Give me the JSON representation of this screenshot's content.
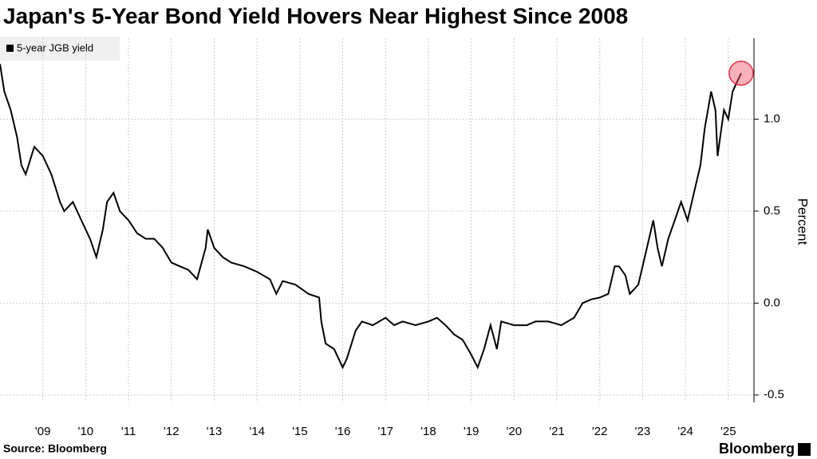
{
  "chart_data": {
    "type": "line",
    "title": "Japan's 5-Year Bond Yield Hovers Near Highest Since 2008",
    "y_label": "Percent",
    "source": "Source: Bloomberg",
    "brand": "Bloomberg",
    "x": [
      2008.5,
      2008.6,
      2008.75,
      2008.9,
      2009.0,
      2009.1,
      2009.3,
      2009.5,
      2009.7,
      2009.9,
      2010.0,
      2010.2,
      2010.4,
      2010.6,
      2010.75,
      2010.9,
      2011.0,
      2011.15,
      2011.3,
      2011.5,
      2011.7,
      2011.9,
      2012.1,
      2012.3,
      2012.5,
      2012.7,
      2012.9,
      2013.1,
      2013.3,
      2013.35,
      2013.5,
      2013.7,
      2013.9,
      2014.2,
      2014.5,
      2014.8,
      2014.95,
      2015.1,
      2015.4,
      2015.7,
      2015.95,
      2016.0,
      2016.1,
      2016.3,
      2016.5,
      2016.6,
      2016.8,
      2016.95,
      2017.2,
      2017.5,
      2017.7,
      2017.9,
      2018.2,
      2018.5,
      2018.7,
      2018.9,
      2019.1,
      2019.3,
      2019.5,
      2019.65,
      2019.8,
      2019.95,
      2020.1,
      2020.2,
      2020.5,
      2020.8,
      2021.0,
      2021.3,
      2021.6,
      2021.9,
      2022.1,
      2022.3,
      2022.5,
      2022.7,
      2022.85,
      2022.95,
      2023.1,
      2023.2,
      2023.4,
      2023.6,
      2023.75,
      2023.85,
      2023.95,
      2024.1,
      2024.25,
      2024.4,
      2024.55,
      2024.7,
      2024.85,
      2024.95,
      2025.1,
      2025.2,
      2025.25,
      2025.4,
      2025.5,
      2025.6,
      2025.7,
      2025.8
    ],
    "series": [
      {
        "name": "5-year JGB yield",
        "color": "#000000",
        "values": [
          1.3,
          1.15,
          1.05,
          0.9,
          0.75,
          0.7,
          0.85,
          0.8,
          0.7,
          0.55,
          0.5,
          0.55,
          0.45,
          0.35,
          0.25,
          0.4,
          0.55,
          0.6,
          0.5,
          0.45,
          0.38,
          0.35,
          0.35,
          0.3,
          0.22,
          0.2,
          0.18,
          0.13,
          0.3,
          0.4,
          0.3,
          0.25,
          0.22,
          0.2,
          0.17,
          0.13,
          0.05,
          0.12,
          0.1,
          0.05,
          0.03,
          -0.1,
          -0.22,
          -0.25,
          -0.35,
          -0.3,
          -0.15,
          -0.1,
          -0.12,
          -0.08,
          -0.12,
          -0.1,
          -0.12,
          -0.1,
          -0.08,
          -0.12,
          -0.17,
          -0.2,
          -0.28,
          -0.35,
          -0.25,
          -0.12,
          -0.25,
          -0.1,
          -0.12,
          -0.12,
          -0.1,
          -0.1,
          -0.12,
          -0.08,
          0.0,
          0.02,
          0.03,
          0.05,
          0.2,
          0.2,
          0.15,
          0.05,
          0.1,
          0.3,
          0.45,
          0.3,
          0.2,
          0.35,
          0.45,
          0.55,
          0.45,
          0.6,
          0.75,
          0.95,
          1.15,
          1.05,
          0.8,
          1.05,
          1.0,
          1.15,
          1.2,
          1.25
        ]
      }
    ],
    "xlim": [
      2008.5,
      2026.1
    ],
    "xticks": [
      {
        "value": 2009.5,
        "label": "'09"
      },
      {
        "value": 2010.5,
        "label": "'10"
      },
      {
        "value": 2011.5,
        "label": "'11"
      },
      {
        "value": 2012.5,
        "label": "'12"
      },
      {
        "value": 2013.5,
        "label": "'13"
      },
      {
        "value": 2014.5,
        "label": "'14"
      },
      {
        "value": 2015.5,
        "label": "'15"
      },
      {
        "value": 2016.5,
        "label": "'16"
      },
      {
        "value": 2017.5,
        "label": "'17"
      },
      {
        "value": 2018.5,
        "label": "'18"
      },
      {
        "value": 2019.5,
        "label": "'19"
      },
      {
        "value": 2020.5,
        "label": "'20"
      },
      {
        "value": 2021.5,
        "label": "'21"
      },
      {
        "value": 2022.5,
        "label": "'22"
      },
      {
        "value": 2023.5,
        "label": "'23"
      },
      {
        "value": 2024.5,
        "label": "'24"
      },
      {
        "value": 2025.5,
        "label": "'25"
      }
    ],
    "ylim": [
      -0.54,
      1.44
    ],
    "yticks": [
      -0.5,
      {
        "value": 0,
        "label": "0.0"
      },
      0.5,
      {
        "value": 1,
        "label": "1.0"
      }
    ],
    "grid": true
  }
}
